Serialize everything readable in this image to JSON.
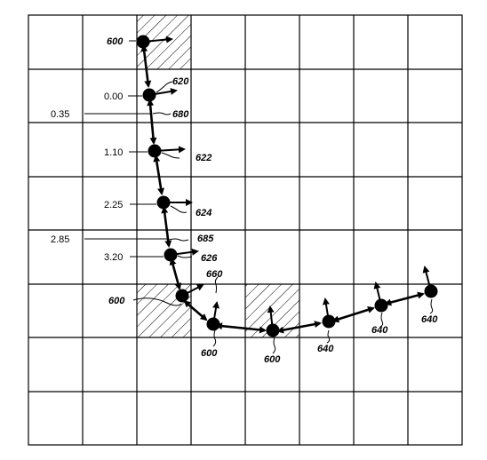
{
  "grid": {
    "cols": 8,
    "rows": 8,
    "hatched_cells": [
      [
        2,
        0
      ],
      [
        2,
        5
      ],
      [
        4,
        5
      ]
    ]
  },
  "nodes": [
    {
      "id": "n1"
    },
    {
      "id": "n2"
    },
    {
      "id": "n3"
    },
    {
      "id": "n4"
    },
    {
      "id": "n5"
    },
    {
      "id": "n6"
    },
    {
      "id": "n7"
    },
    {
      "id": "n8"
    },
    {
      "id": "n9"
    },
    {
      "id": "n10"
    },
    {
      "id": "n11"
    },
    {
      "id": "n12"
    }
  ],
  "labels": {
    "l600_top": "600",
    "l620": "620",
    "l680": "680",
    "l622": "622",
    "l624": "624",
    "l685": "685",
    "l626": "626",
    "l660": "660",
    "l600_mid": "600",
    "l600_b1": "600",
    "l600_b2": "600",
    "l640_a": "640",
    "l640_b": "640",
    "l640_c": "640",
    "v000": "0.00",
    "v035": "0.35",
    "v110": "1.10",
    "v225": "2.25",
    "v285": "2.85",
    "v320": "3.20"
  }
}
